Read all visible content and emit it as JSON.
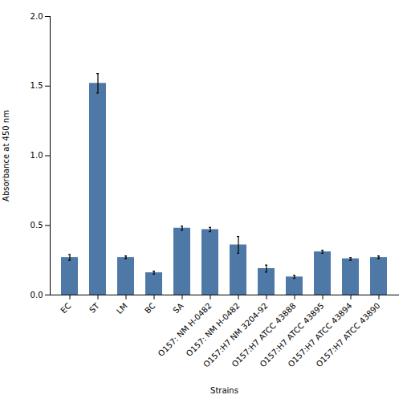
{
  "chart_data": {
    "type": "bar",
    "categories": [
      "EC",
      "ST",
      "LM",
      "BC",
      "SA",
      "O157: NM H-0482",
      "O157: NM H-0482",
      "O157:H7 NM 3204-92",
      "O157:H7 ATCC 43888",
      "O157:H7 ATCC 43895",
      "O157:H7 ATCC 43894",
      "O157:H7 ATCC 43890"
    ],
    "values": [
      0.27,
      1.52,
      0.27,
      0.16,
      0.48,
      0.47,
      0.36,
      0.19,
      0.13,
      0.31,
      0.26,
      0.27
    ],
    "errors": [
      0.02,
      0.07,
      0.01,
      0.01,
      0.015,
      0.015,
      0.06,
      0.025,
      0.01,
      0.01,
      0.01,
      0.01
    ],
    "xlabel": "Strains",
    "ylabel": "Absorbance at 450 nm",
    "ylim": [
      0.0,
      2.0
    ],
    "yticks": [
      {
        "value": 0,
        "label": "0.0"
      },
      0.5,
      {
        "value": 1,
        "label": "1.0"
      },
      1.5,
      {
        "value": 2,
        "label": "2.0"
      }
    ],
    "color": "#4e79a7",
    "grid": false
  }
}
